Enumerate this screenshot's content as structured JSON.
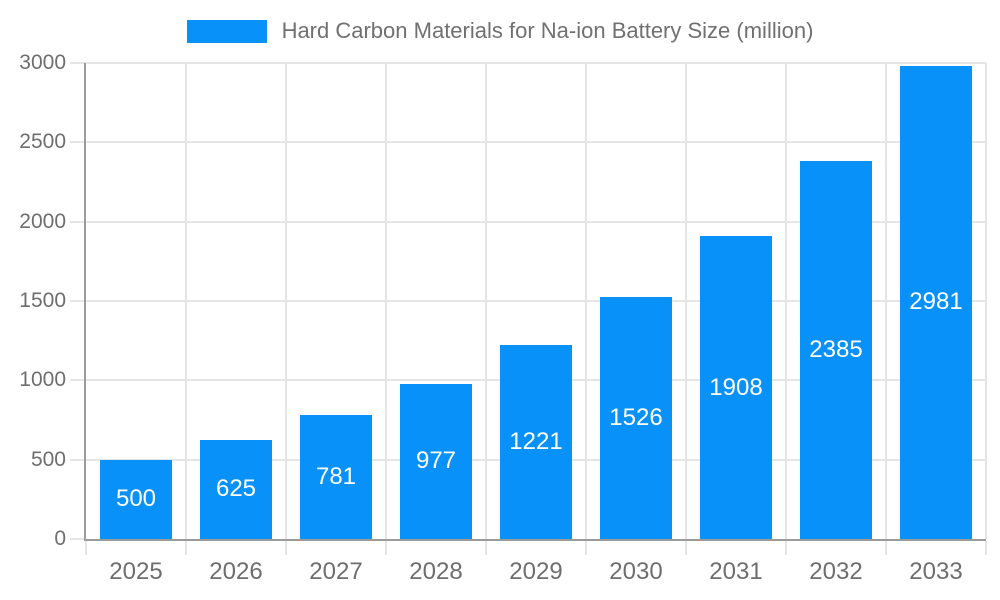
{
  "chart_data": {
    "type": "bar",
    "title": "Hard Carbon Materials for Na-ion Battery Size (million)",
    "categories": [
      "2025",
      "2026",
      "2027",
      "2028",
      "2029",
      "2030",
      "2031",
      "2032",
      "2033"
    ],
    "values": [
      500,
      625,
      781,
      977,
      1221,
      1526,
      1908,
      2385,
      2981
    ],
    "value_labels_shown": true,
    "xlabel": "",
    "ylabel": "",
    "ylim": [
      0,
      3000
    ],
    "yticks": [
      0,
      500,
      1000,
      1500,
      2000,
      2500,
      3000
    ],
    "grid": true,
    "legend_position": "top-center",
    "colors": {
      "bar": "#0991fa",
      "value_label": "#ffffff",
      "grid": "#e5e5e5",
      "axis": "#9b9b9b",
      "tick_text": "#6e6e6e",
      "title_text": "#707070"
    }
  }
}
